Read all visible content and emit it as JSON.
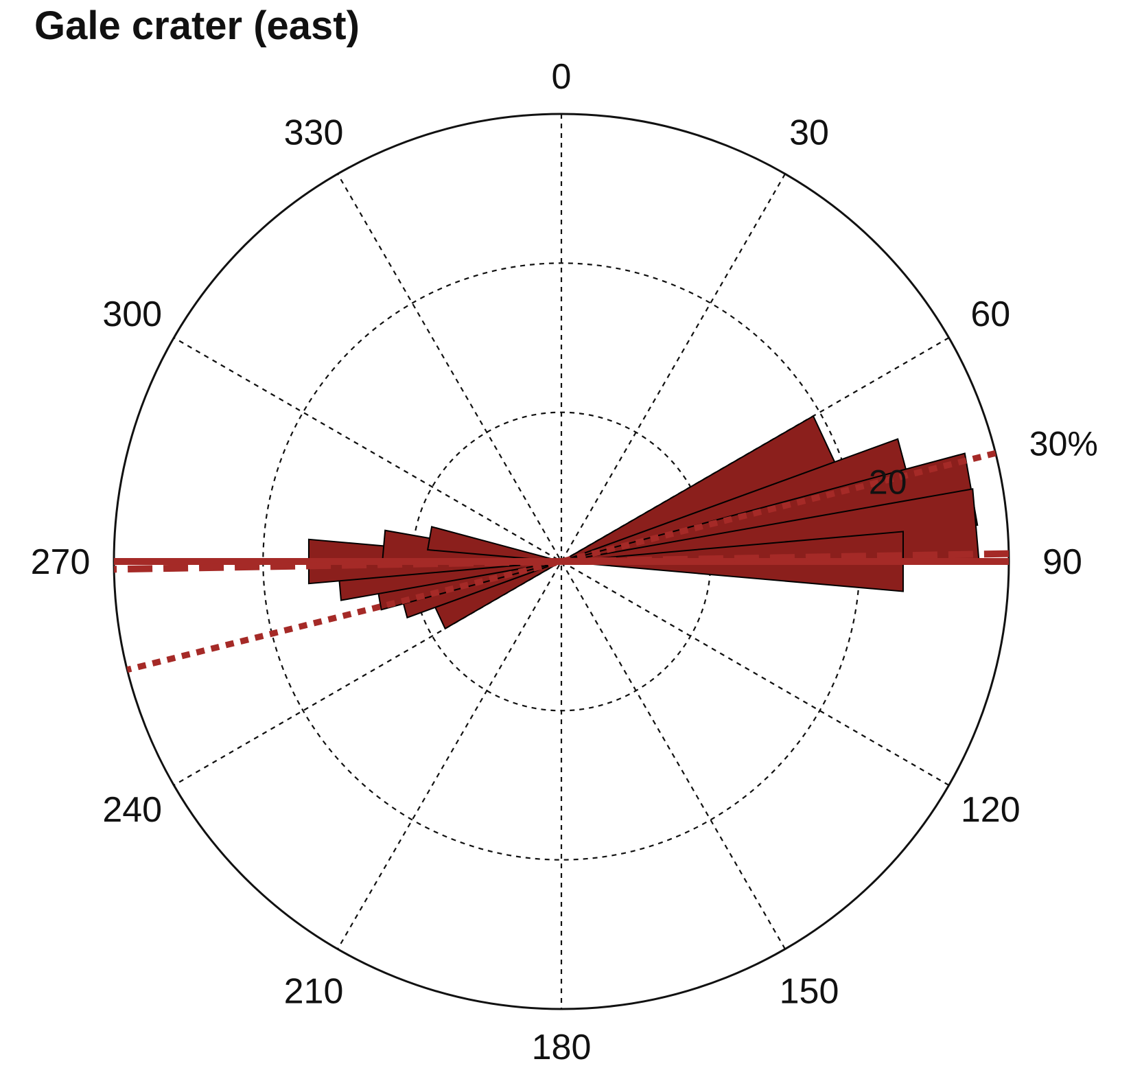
{
  "chart_data": {
    "type": "rose",
    "title": "Gale crater (east)",
    "angle_ticks": [
      0,
      30,
      60,
      90,
      120,
      150,
      180,
      210,
      240,
      270,
      300,
      330
    ],
    "angle_tick_labels": [
      "0",
      "30",
      "60",
      "90",
      "120",
      "150",
      "180",
      "210",
      "240",
      "270",
      "300",
      "330"
    ],
    "radial_max": 30,
    "radial_grid": [
      10,
      20,
      30
    ],
    "radial_tick_labels": [
      {
        "value": 20,
        "text": "20"
      },
      {
        "value": 30,
        "text": "30%"
      }
    ],
    "grid": true,
    "bin_width_deg": 10,
    "bins": [
      {
        "center": 65,
        "value": 19.5
      },
      {
        "center": 75,
        "value": 24
      },
      {
        "center": 80,
        "value": 28
      },
      {
        "center": 85,
        "value": 28
      },
      {
        "center": 90,
        "value": 23
      },
      {
        "center": 245,
        "value": 9
      },
      {
        "center": 255,
        "value": 11
      },
      {
        "center": 260,
        "value": 12.5
      },
      {
        "center": 265,
        "value": 15
      },
      {
        "center": 270,
        "value": 17
      },
      {
        "center": 275,
        "value": 12
      },
      {
        "center": 280,
        "value": 9
      }
    ],
    "reference_lines": [
      {
        "style": "solid",
        "azimuth": 90
      },
      {
        "style": "dashed",
        "azimuth": 89
      },
      {
        "style": "dotted",
        "azimuth": 76
      }
    ],
    "colors": {
      "bar_fill": "#8b1f1c",
      "bar_edge": "#000000",
      "reference_line": "#a52a27",
      "grid": "#111111"
    }
  }
}
